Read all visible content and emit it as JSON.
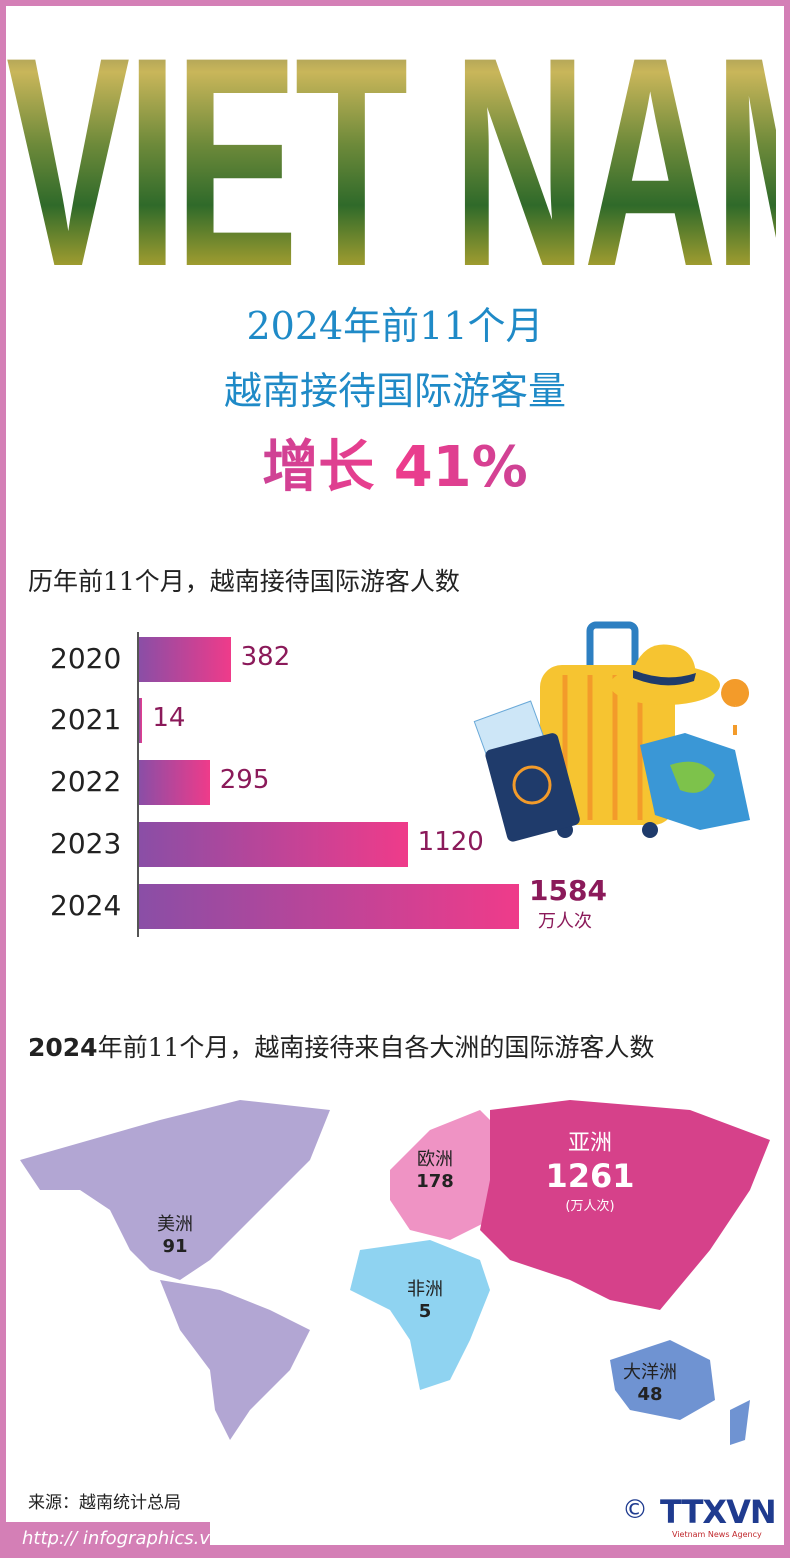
{
  "hero": {
    "title": "VIET NAM"
  },
  "headline": {
    "line1": "2024年前11个月",
    "line2": "越南接待国际游客量",
    "line3": "增长 41%"
  },
  "chart_data": {
    "type": "bar",
    "title": "历年前11个月，越南接待国际游客人数",
    "categories": [
      "2020",
      "2021",
      "2022",
      "2023",
      "2024"
    ],
    "values": [
      382,
      14,
      295,
      1120,
      1584
    ],
    "unit": "万人次",
    "xlim": [
      0,
      1584
    ]
  },
  "map": {
    "title_bold": "2024",
    "title_rest": "年前11个月，越南接待来自各大洲的国际游客人数",
    "regions": [
      {
        "name": "美洲",
        "value": "91",
        "color": "#b2a6d3"
      },
      {
        "name": "欧洲",
        "value": "178",
        "color": "#ef93c4"
      },
      {
        "name": "亚洲",
        "value": "1261",
        "unit": "(万人次)",
        "color": "#d6418a"
      },
      {
        "name": "非洲",
        "value": "5",
        "color": "#8fd3f1"
      },
      {
        "name": "大洋洲",
        "value": "48",
        "color": "#6f93d2"
      }
    ]
  },
  "footer": {
    "source": "来源：越南统计总局",
    "url": "http:// infographics.vn",
    "logo": "TTXVN",
    "logo_sub": "Vietnam News Agency",
    "copyright": "©"
  }
}
